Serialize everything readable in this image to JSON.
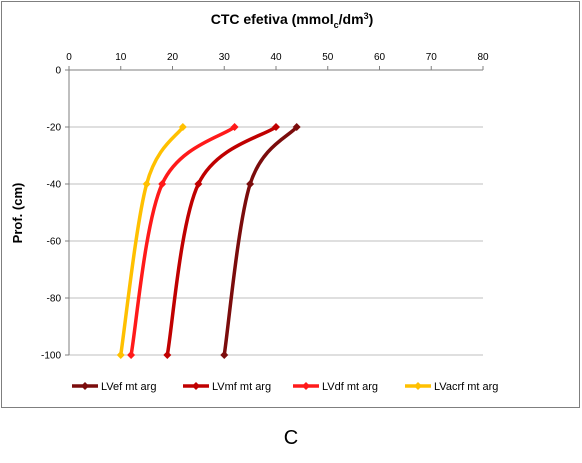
{
  "chart_data": {
    "type": "line",
    "title": {
      "main": "CTC efetiva (mmol",
      "sub": "c",
      "mid": "/dm",
      "sup": "3",
      "end": ")"
    },
    "xlabel": "",
    "ylabel": "Prof. (cm)",
    "xlim": [
      0,
      80
    ],
    "ylim": [
      -100,
      0
    ],
    "xticks": [
      "0",
      "10",
      "20",
      "30",
      "40",
      "50",
      "60",
      "70",
      "80"
    ],
    "yticks": [
      "0",
      "-20",
      "-40",
      "-60",
      "-80",
      "-100"
    ],
    "grid": "horizontal",
    "x_axis_position": "top",
    "legend_position": "bottom",
    "series": [
      {
        "name": "LVef mt arg",
        "color": "#7b0c0c",
        "points": [
          [
            44,
            -20
          ],
          [
            35,
            -40
          ],
          [
            30,
            -100
          ]
        ]
      },
      {
        "name": "LVmf mt arg",
        "color": "#c00000",
        "points": [
          [
            40,
            -20
          ],
          [
            25,
            -40
          ],
          [
            19,
            -100
          ]
        ]
      },
      {
        "name": "LVdf mt arg",
        "color": "#ff1a1a",
        "points": [
          [
            32,
            -20
          ],
          [
            18,
            -40
          ],
          [
            12,
            -100
          ]
        ]
      },
      {
        "name": "LVacrf mt arg",
        "color": "#ffc000",
        "points": [
          [
            22,
            -20
          ],
          [
            15,
            -40
          ],
          [
            10,
            -100
          ]
        ]
      }
    ]
  },
  "caption": "C"
}
